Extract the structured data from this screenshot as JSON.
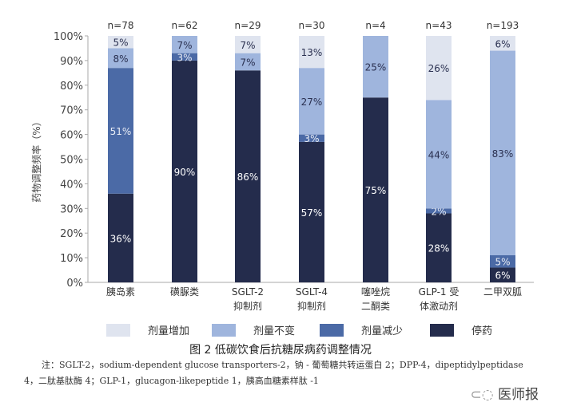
{
  "chart_data": {
    "type": "bar",
    "stacked": true,
    "ylabel": "药物调整频率（%）",
    "ylim": [
      0,
      100
    ],
    "yticks": [
      "0%",
      "10%",
      "20%",
      "30%",
      "40%",
      "50%",
      "60%",
      "70%",
      "80%",
      "90%",
      "100%"
    ],
    "categories": [
      "胰岛素",
      "磺脲类",
      "SGLT-2\n抑制剂",
      "SGLT-4\n抑制剂",
      "噻唑烷\n二酮类",
      "GLP-1 受\n体激动剂",
      "二甲双胍"
    ],
    "n_labels": [
      "n=78",
      "n=62",
      "n=29",
      "n=30",
      "n=4",
      "n=43",
      "n=193"
    ],
    "series": [
      {
        "name": "停药",
        "color": "#242c4c",
        "values": [
          36,
          90,
          86,
          57,
          75,
          28,
          6
        ]
      },
      {
        "name": "剂量减少",
        "color": "#4b6aa6",
        "values": [
          51,
          3,
          0,
          3,
          0,
          2,
          5
        ]
      },
      {
        "name": "剂量不变",
        "color": "#9fb5dd",
        "values": [
          8,
          7,
          7,
          27,
          25,
          44,
          83
        ]
      },
      {
        "name": "剂量增加",
        "color": "#dfe4ef",
        "values": [
          5,
          0,
          7,
          13,
          0,
          26,
          6
        ]
      }
    ],
    "legend_position": "bottom"
  },
  "caption": "图 2 低碳饮食后抗糖尿病药调整情况",
  "note": "注：SGLT-2，sodium-dependent glucose transporters-2，钠 - 葡萄糖共转运蛋白 2；DPP-4，dipeptidylpeptidase 4，二肽基肽酶 4；GLP-1，glucagon-likepeptide 1，胰高血糖素样肽 -1",
  "brand": "医师报"
}
